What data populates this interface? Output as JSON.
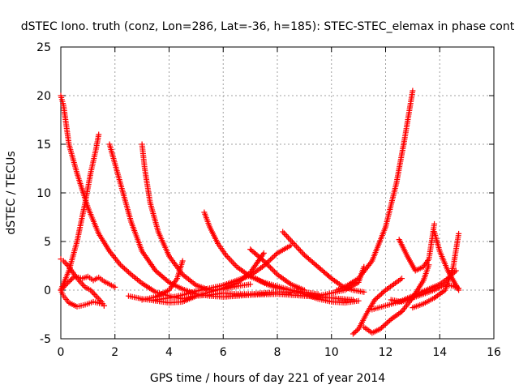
{
  "chart_data": {
    "type": "scatter",
    "title": "dSTEC Iono. truth (conz, Lon=286, Lat=-36, h=185): STEC-STEC_elemax in phase cont",
    "xlabel": "GPS time / hours of day 221 of year 2014",
    "ylabel": "dSTEC  / TECUs",
    "xlim": [
      0,
      16
    ],
    "ylim": [
      -5,
      25
    ],
    "xticks": [
      0,
      2,
      4,
      6,
      8,
      10,
      12,
      14,
      16
    ],
    "yticks": [
      -5,
      0,
      5,
      10,
      15,
      20,
      25
    ],
    "grid": true,
    "marker": "+",
    "color": "#ff0000",
    "series": [
      {
        "x": [
          0.0,
          0.1,
          0.3,
          0.5,
          0.7,
          0.9,
          1.1,
          1.3,
          1.5,
          1.6
        ],
        "y": [
          3.2,
          3.0,
          2.4,
          1.6,
          0.9,
          0.3,
          0.0,
          -0.6,
          -1.2,
          -1.6
        ]
      },
      {
        "x": [
          0.0,
          0.2,
          0.5,
          0.8,
          1.0,
          1.2,
          1.4,
          1.6,
          1.8,
          2.0
        ],
        "y": [
          0.0,
          0.6,
          1.4,
          1.2,
          1.4,
          1.0,
          1.3,
          0.9,
          0.6,
          0.3
        ]
      },
      {
        "x": [
          0.0,
          0.1,
          0.3,
          0.6,
          0.9,
          1.2,
          1.5,
          1.6
        ],
        "y": [
          0.0,
          -0.6,
          -1.3,
          -1.7,
          -1.5,
          -1.2,
          -1.4,
          -1.6
        ]
      },
      {
        "x": [
          0.0,
          0.1,
          0.3,
          0.6,
          1.0,
          1.4,
          1.8,
          2.2,
          2.6,
          3.0,
          3.5,
          4.0,
          4.5,
          5.0,
          5.5,
          6.0,
          6.5,
          7.0,
          7.5,
          8.0,
          8.5
        ],
        "y": [
          20.0,
          19.0,
          15.0,
          12.0,
          8.5,
          5.8,
          4.0,
          2.6,
          1.6,
          0.7,
          -0.2,
          -0.6,
          -0.9,
          -0.6,
          -0.5,
          -0.3,
          -0.4,
          -0.4,
          -0.3,
          -0.2,
          -0.2
        ]
      },
      {
        "x": [
          0.0,
          0.3,
          0.6,
          0.9,
          1.1,
          1.3,
          1.4
        ],
        "y": [
          0.0,
          2.0,
          5.0,
          9.0,
          12.0,
          14.5,
          16.0
        ]
      },
      {
        "x": [
          1.8,
          2.2,
          2.6,
          3.0,
          3.5,
          4.0,
          4.5,
          5.0,
          5.5,
          6.0,
          7.0,
          8.0,
          9.0,
          10.0,
          10.8
        ],
        "y": [
          15.0,
          11.0,
          7.0,
          4.0,
          2.0,
          0.8,
          0.1,
          -0.4,
          -0.6,
          -0.7,
          -0.5,
          -0.4,
          -0.6,
          -0.8,
          -1.0
        ]
      },
      {
        "x": [
          3.0,
          3.1,
          3.3,
          3.6,
          4.0,
          4.5,
          5.0,
          5.5,
          6.0,
          6.5,
          7.0
        ],
        "y": [
          15.0,
          12.5,
          9.0,
          6.0,
          3.5,
          1.6,
          0.5,
          0.0,
          0.1,
          0.4,
          0.6
        ]
      },
      {
        "x": [
          3.0,
          3.5,
          4.0,
          4.3,
          4.5
        ],
        "y": [
          -1.0,
          -0.7,
          0.0,
          1.2,
          3.0
        ]
      },
      {
        "x": [
          2.5,
          3.0,
          3.5,
          4.0,
          4.5,
          5.0,
          5.5,
          6.0,
          6.5,
          7.0,
          7.5
        ],
        "y": [
          -0.6,
          -0.9,
          -1.1,
          -1.3,
          -1.2,
          -0.6,
          -0.2,
          0.2,
          0.7,
          1.8,
          3.8
        ]
      },
      {
        "x": [
          3.5,
          4.0,
          4.5,
          5.0,
          5.5,
          6.0,
          6.5,
          7.0,
          7.5,
          8.0,
          8.5
        ],
        "y": [
          -1.0,
          -0.8,
          -0.5,
          -0.1,
          0.2,
          0.5,
          1.0,
          1.5,
          2.5,
          3.8,
          4.6
        ]
      },
      {
        "x": [
          5.3,
          5.5,
          5.8,
          6.1,
          6.5,
          7.0,
          7.5,
          8.0,
          8.5,
          9.0,
          9.5
        ],
        "y": [
          8.0,
          6.5,
          4.8,
          3.6,
          2.4,
          1.4,
          0.8,
          0.4,
          0.0,
          -0.2,
          -0.4
        ]
      },
      {
        "x": [
          7.2,
          7.6,
          8.0,
          8.5,
          9.0,
          9.5,
          10.0,
          10.5,
          11.0
        ],
        "y": [
          1.2,
          0.6,
          0.2,
          0.0,
          -0.4,
          -0.9,
          -1.2,
          -1.3,
          -1.1
        ]
      },
      {
        "x": [
          7.0,
          7.5,
          8.0,
          8.5,
          9.0
        ],
        "y": [
          4.2,
          3.0,
          1.6,
          0.6,
          0.0
        ]
      },
      {
        "x": [
          8.2,
          8.6,
          9.0,
          9.5,
          10.0,
          10.4,
          10.8,
          11.2
        ],
        "y": [
          6.0,
          4.8,
          3.6,
          2.4,
          1.2,
          0.4,
          0.0,
          -0.2
        ]
      },
      {
        "x": [
          9.0,
          9.5,
          10.0,
          10.5,
          11.0,
          11.2
        ],
        "y": [
          -0.4,
          -0.6,
          -0.3,
          0.0,
          0.8,
          2.4
        ]
      },
      {
        "x": [
          10.2,
          10.6,
          11.0,
          11.5,
          12.0,
          12.4,
          12.7,
          13.0
        ],
        "y": [
          0.0,
          0.5,
          1.2,
          3.0,
          6.5,
          11.0,
          15.5,
          20.5
        ]
      },
      {
        "x": [
          10.8,
          11.0,
          11.3,
          11.6,
          12.0,
          12.3,
          12.6
        ],
        "y": [
          -4.5,
          -4.0,
          -2.4,
          -1.0,
          0.0,
          0.6,
          1.2
        ]
      },
      {
        "x": [
          11.2,
          11.5,
          11.8,
          12.2,
          12.6,
          13.0,
          13.4,
          13.6
        ],
        "y": [
          -3.8,
          -4.4,
          -4.0,
          -3.0,
          -2.2,
          -0.8,
          1.0,
          2.6
        ]
      },
      {
        "x": [
          12.5,
          12.8,
          13.1,
          13.4,
          13.6,
          13.8
        ],
        "y": [
          5.2,
          3.5,
          2.0,
          2.4,
          3.2,
          6.8
        ]
      },
      {
        "x": [
          11.5,
          12.0,
          12.5,
          13.0,
          13.5,
          14.0,
          14.3,
          14.6
        ],
        "y": [
          -2.0,
          -1.6,
          -1.2,
          -0.6,
          0.0,
          0.6,
          1.2,
          2.0
        ]
      },
      {
        "x": [
          13.0,
          13.4,
          13.8,
          14.2,
          14.5,
          14.7
        ],
        "y": [
          -1.8,
          -1.4,
          -0.8,
          0.0,
          2.4,
          5.8
        ]
      },
      {
        "x": [
          13.8,
          14.0,
          14.3,
          14.6,
          14.7
        ],
        "y": [
          6.0,
          4.0,
          2.0,
          0.5,
          0.0
        ]
      },
      {
        "x": [
          12.2,
          12.6,
          13.0,
          13.4,
          13.8,
          14.2,
          14.5,
          14.7
        ],
        "y": [
          -1.0,
          -1.2,
          -0.8,
          -0.4,
          0.0,
          0.6,
          0.4,
          0.2
        ]
      }
    ]
  }
}
